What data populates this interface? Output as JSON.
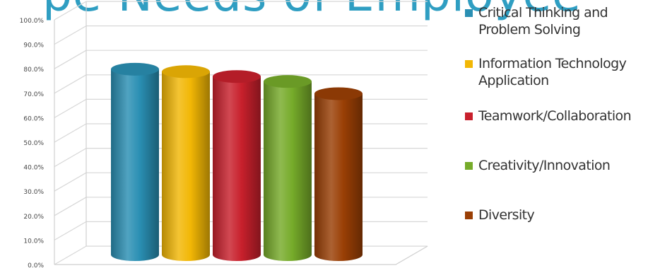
{
  "header": {
    "partial_title": "pe Needs of Employee"
  },
  "chart_data": {
    "type": "bar",
    "title": "",
    "xlabel": "",
    "ylabel": "",
    "ylim": [
      0,
      100
    ],
    "y_ticks": [
      "0.0%",
      "10.0%",
      "20.0%",
      "30.0%",
      "40.0%",
      "50.0%",
      "60.0%",
      "70.0%",
      "80.0%",
      "90.0%",
      "100.0%"
    ],
    "grid": true,
    "legend_placement": "right",
    "style": "3d-cylinder",
    "categories": [
      "Critical Thinking and Problem Solving",
      "Information Technology Application",
      "Teamwork/Collaboration",
      "Creativity/Innovation",
      "Diversity"
    ],
    "values": [
      77.5,
      76.5,
      74.5,
      72.5,
      67.5
    ],
    "colors": [
      "#2a8fb3",
      "#f2b705",
      "#c8202c",
      "#76ab2a",
      "#9a3f05"
    ]
  },
  "legend": {
    "items": [
      {
        "label": "Critical Thinking and Problem Solving",
        "color": "#2a8fb3"
      },
      {
        "label": "Information Technology Application",
        "color": "#f2b705"
      },
      {
        "label": "Teamwork/Collaboration",
        "color": "#c8202c"
      },
      {
        "label": "Creativity/Innovation",
        "color": "#76ab2a"
      },
      {
        "label": "Diversity",
        "color": "#9a3f05"
      }
    ]
  }
}
